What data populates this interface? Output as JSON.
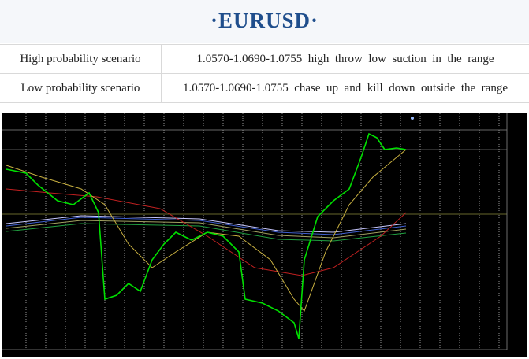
{
  "header": {
    "title": "·EURUSD·"
  },
  "table": {
    "rows": [
      [
        "High probability scenario",
        "1.0570-1.0690-1.0755  high  throw  low  suction  in  the  range"
      ],
      [
        "Low probability scenario",
        "1.0570-1.0690-1.0755  chase  up  and  kill  down  outside  the  range"
      ]
    ]
  }
}
